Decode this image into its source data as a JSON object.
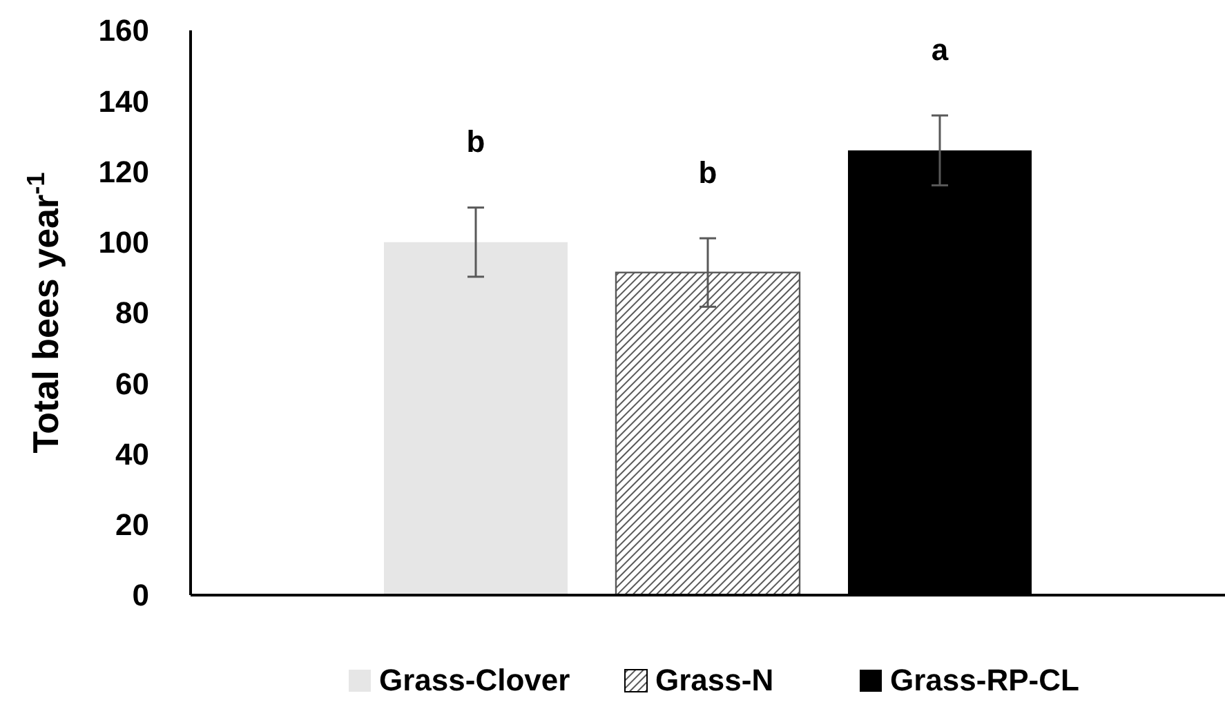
{
  "chart_data": {
    "type": "bar",
    "ylabel": "Total bees year$^{-1}$",
    "categories": [
      null
    ],
    "series": [
      {
        "name": "Grass-Clover",
        "color": "#e6e6e6",
        "values": [
          100
        ],
        "errors": [
          9.8
        ]
      },
      {
        "name": "Grass-N",
        "color": "#595959",
        "values": [
          91.4
        ],
        "errors": [
          9.7
        ]
      },
      {
        "name": "Grass-RP-CL",
        "color": "#000000",
        "values": [
          126
        ],
        "errors": [
          9.9
        ]
      }
    ],
    "ylim": [
      0,
      160
    ],
    "yticks": [
      0,
      20,
      40,
      60,
      80,
      100,
      120,
      140,
      160
    ],
    "grid": false,
    "legend": "bottom",
    "annotations": [
      "b",
      "b",
      "a"
    ]
  }
}
